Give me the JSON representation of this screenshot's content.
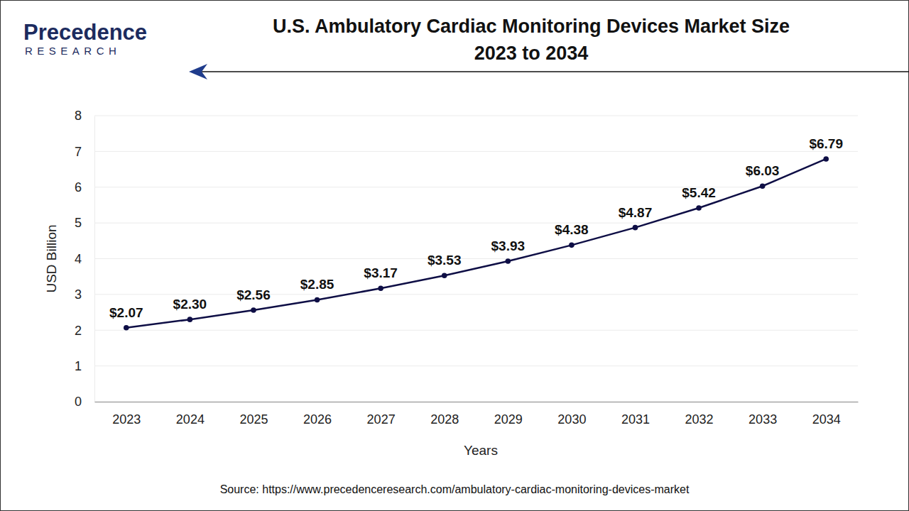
{
  "chart_data": {
    "type": "line",
    "title": "U.S. Ambulatory Cardiac Monitoring Devices Market Size\n2023 to 2034",
    "logo": [
      "Precedence",
      "RESEARCH"
    ],
    "source": "Source: https://www.precedenceresearch.com/ambulatory-cardiac-monitoring-devices-market",
    "x_label": "Years",
    "y_label": "USD Billion",
    "categories": [
      "2023",
      "2024",
      "2025",
      "2026",
      "2027",
      "2028",
      "2029",
      "2030",
      "2031",
      "2032",
      "2033",
      "2034"
    ],
    "values": [
      2.07,
      2.3,
      2.56,
      2.85,
      3.17,
      3.53,
      3.93,
      4.38,
      4.87,
      5.42,
      6.03,
      6.79
    ],
    "value_labels": [
      "$2.07",
      "$2.30",
      "$2.56",
      "$2.85",
      "$3.17",
      "$3.53",
      "$3.93",
      "$4.38",
      "$4.87",
      "$5.42",
      "$6.03",
      "$6.79"
    ],
    "color": "#0e0e45",
    "marker": "circle",
    "line_style": "solid",
    "ylim": [
      0,
      8
    ],
    "yticks": [
      0,
      1,
      2,
      3,
      4,
      5,
      6,
      7,
      8
    ],
    "grid": true,
    "data_labels": true
  }
}
